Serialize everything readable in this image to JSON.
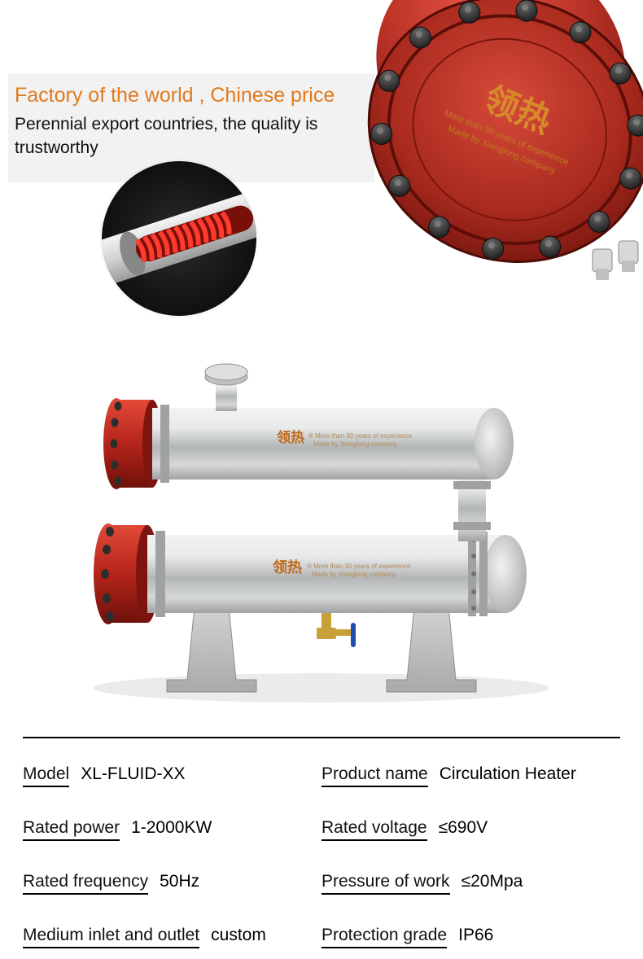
{
  "hero": {
    "title": "Factory of the world , Chinese price",
    "subtitle": "Perennial export countries, the quality is trustworthy",
    "title_color": "#e17a1d",
    "box_bg": "#f2f2f2"
  },
  "coil": {
    "coil_color": "#e3211c",
    "pipe_color": "#e6e6e6",
    "pipe_shadow": "#b8b8b8",
    "bg": "#1a1a1a"
  },
  "flange": {
    "body_color": "#b5241a",
    "body_highlight": "#e24a38",
    "plate_color": "#9a1f16",
    "bolt_color": "#2d2d2d",
    "bolt_highlight": "#5a5a5a",
    "brand_text": "领热",
    "brand_sub1": "More than 30 years of experience",
    "brand_sub2": "Made by Xianglong company",
    "brand_color": "#d78a2a"
  },
  "product": {
    "tank_color": "#c9cbcc",
    "tank_highlight": "#eceeef",
    "tank_shadow": "#8d8f90",
    "flange_color": "#b5241a",
    "flange_dark": "#7d150e",
    "bracket_color": "#b9bbbc",
    "valve_body": "#c9a13b",
    "valve_handle": "#1e4fb0",
    "brand_text": "领热",
    "brand_sub1": "More than 30 years of experience",
    "brand_sub2": "Made by Xianglong company",
    "brand_color": "#c06a1a"
  },
  "specs": [
    {
      "label": "Model",
      "value": "XL-FLUID-XX"
    },
    {
      "label": "Product name",
      "value": "Circulation Heater"
    },
    {
      "label": "Rated power",
      "value": "1-2000KW"
    },
    {
      "label": "Rated voltage",
      "value": "≤690V"
    },
    {
      "label": "Rated frequency",
      "value": "50Hz"
    },
    {
      "label": "Pressure of work",
      "value": "≤20Mpa"
    },
    {
      "label": "Medium inlet and outlet",
      "value": "custom"
    },
    {
      "label": "Protection grade",
      "value": "IP66"
    }
  ]
}
